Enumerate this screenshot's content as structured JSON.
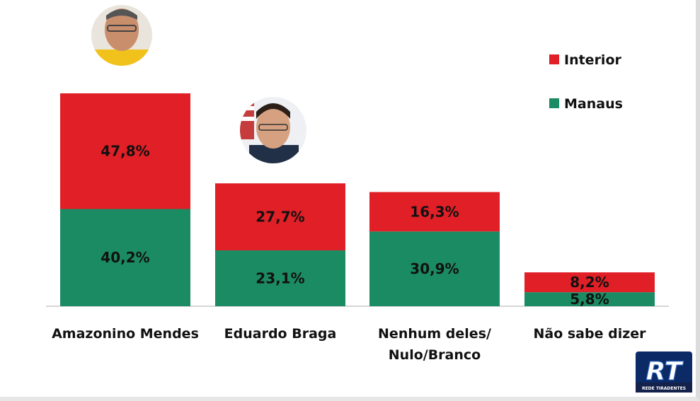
{
  "chart_data": {
    "type": "bar",
    "stacked": true,
    "categories": [
      "Amazonino Mendes",
      "Eduardo Braga",
      "Nenhum deles/\nNulo/Branco",
      "Não sabe dizer"
    ],
    "series": [
      {
        "name": "Manaus",
        "values": [
          40.2,
          23.1,
          30.9,
          5.8
        ],
        "labels": [
          "40,2%",
          "23,1%",
          "30,9%",
          "5,8%"
        ],
        "color": "#1b8b63"
      },
      {
        "name": "Interior",
        "values": [
          47.8,
          27.7,
          16.3,
          8.2
        ],
        "labels": [
          "47,8%",
          "27,7%",
          "16,3%",
          "8,2%"
        ],
        "color": "#e01f26"
      }
    ],
    "legend": {
      "position": "top-right",
      "order": [
        "Interior",
        "Manaus"
      ]
    },
    "grid": false,
    "ylim": [
      0,
      88
    ],
    "xlabel": "",
    "ylabel": ""
  },
  "logo": {
    "text": "RT",
    "caption": "REDE TIRADENTES"
  },
  "colors": {
    "axis": "#c8c8c8",
    "text": "#111111"
  },
  "icons": [
    "candidate-photo-amazonino",
    "candidate-photo-eduardo"
  ]
}
